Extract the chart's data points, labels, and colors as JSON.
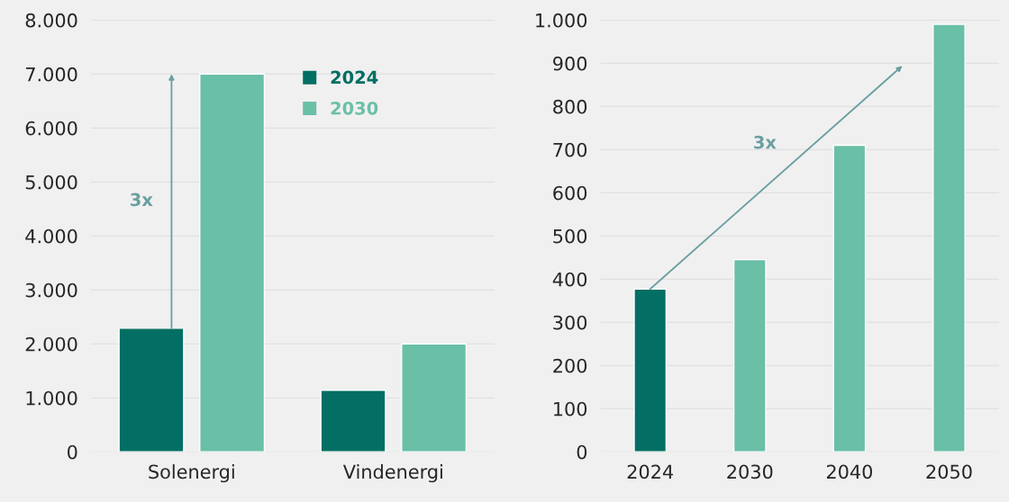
{
  "chart_data": [
    {
      "type": "bar",
      "categories": [
        "Solenergi",
        "Vindenergi"
      ],
      "series": [
        {
          "name": "2024",
          "color": "#036e63",
          "values": [
            2290,
            1140
          ]
        },
        {
          "name": "2030",
          "color": "#6abfa7",
          "values": [
            7000,
            2000
          ]
        }
      ],
      "ylim": [
        0,
        8000
      ],
      "yticks": [
        0,
        {
          "value": 1000,
          "label": "1.000"
        },
        {
          "value": 2000,
          "label": "2.000"
        },
        {
          "value": 3000,
          "label": "3.000"
        },
        {
          "value": 4000,
          "label": "4.000"
        },
        {
          "value": 5000,
          "label": "5.000"
        },
        {
          "value": 6000,
          "label": "6.000"
        },
        {
          "value": 7000,
          "label": "7.000"
        },
        {
          "value": 8000,
          "label": "8.000"
        }
      ],
      "grid": "y",
      "legend": "top",
      "annotations": [
        "3x"
      ]
    },
    {
      "type": "bar",
      "categories": [
        "2024",
        "2030",
        "2040",
        "2050"
      ],
      "values": [
        377,
        445,
        710,
        990
      ],
      "colors": [
        "#036e63",
        "#6abfa7",
        "#6abfa7",
        "#6abfa7"
      ],
      "ylim": [
        0,
        1000
      ],
      "yticks": [
        0,
        100,
        200,
        300,
        400,
        500,
        600,
        700,
        800,
        900,
        {
          "value": 1000,
          "label": "1.000"
        }
      ],
      "grid": "y",
      "annotations": [
        "3x"
      ]
    }
  ]
}
